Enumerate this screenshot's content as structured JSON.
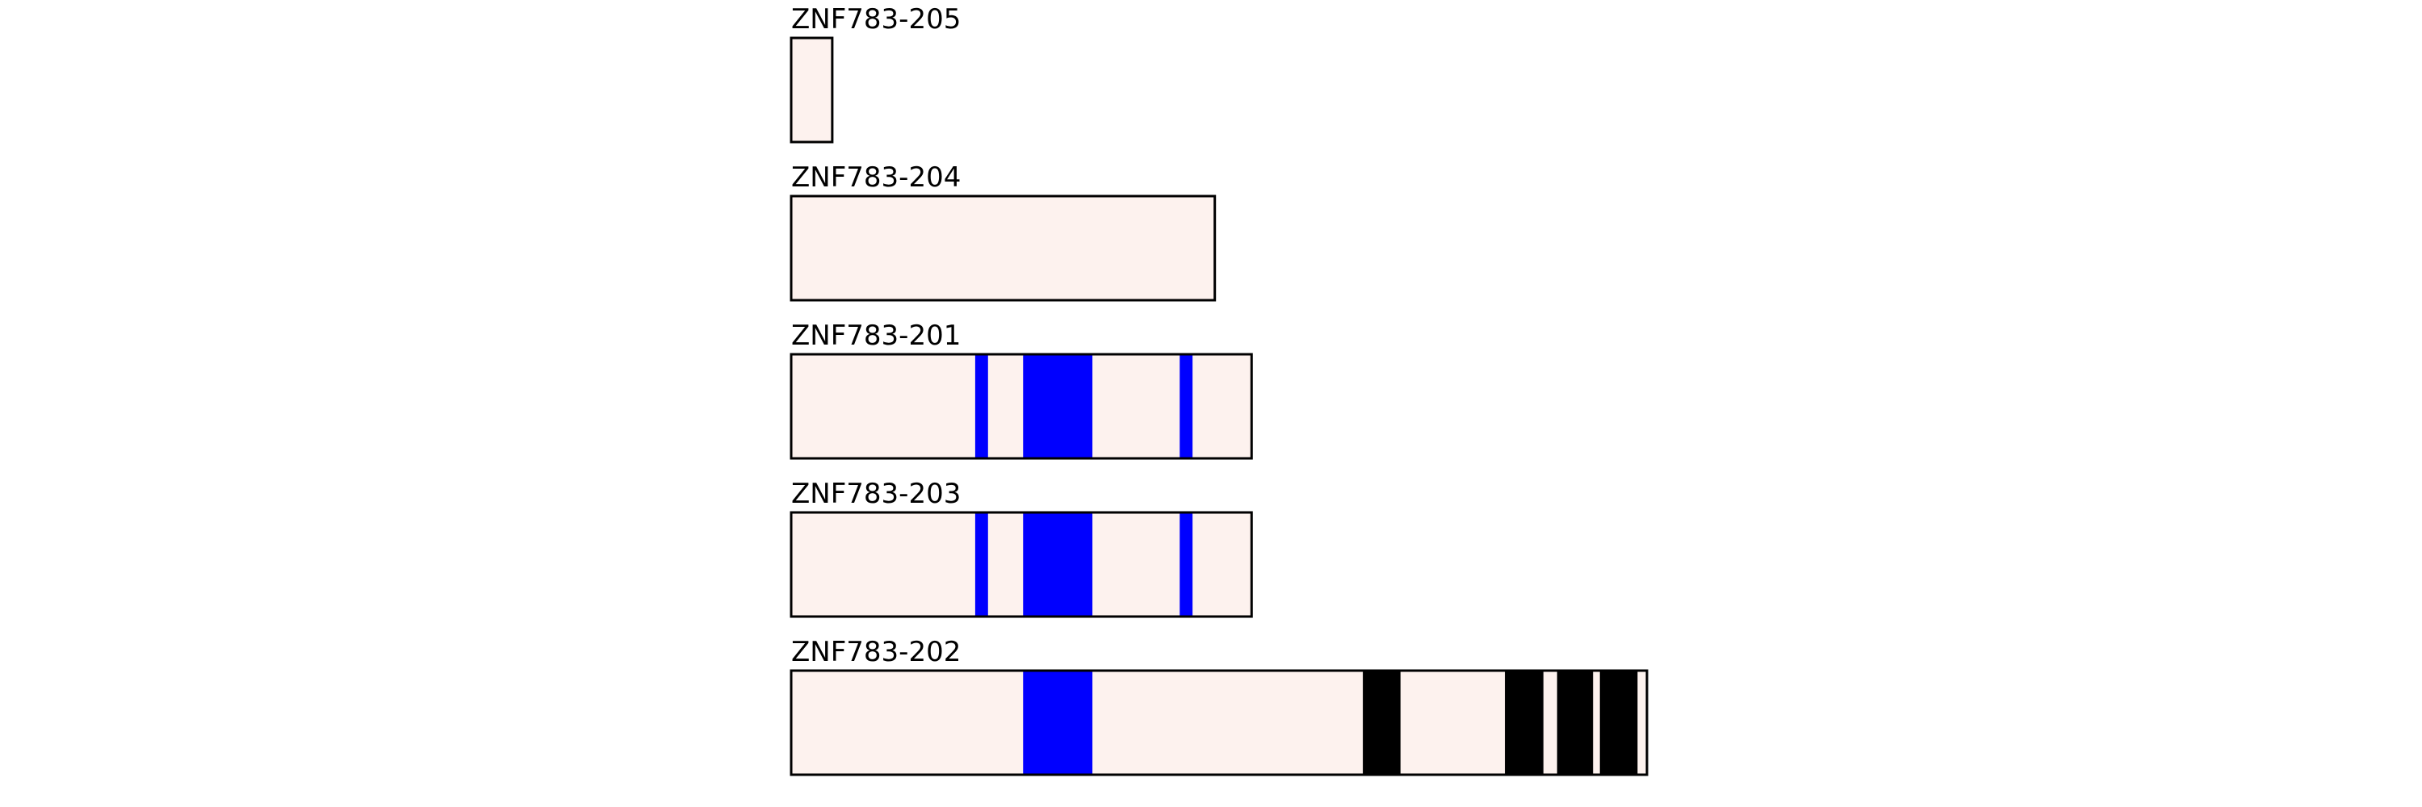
{
  "colors": {
    "background": "#ffffff",
    "transcript_fill": "#fdf2ee",
    "outline": "#000000",
    "blue_feature": "#0000ff",
    "black_feature": "#000000"
  },
  "transcripts": [
    {
      "name": "ZNF783-205",
      "span": [
        0,
        0.048
      ],
      "features": []
    },
    {
      "name": "ZNF783-204",
      "span": [
        0,
        0.495
      ],
      "features": []
    },
    {
      "name": "ZNF783-201",
      "span": [
        0,
        0.538
      ],
      "features": [
        {
          "range": [
            0.215,
            0.23
          ],
          "color": "#0000ff"
        },
        {
          "range": [
            0.271,
            0.352
          ],
          "color": "#0000ff"
        },
        {
          "range": [
            0.454,
            0.469
          ],
          "color": "#0000ff"
        }
      ]
    },
    {
      "name": "ZNF783-203",
      "span": [
        0,
        0.538
      ],
      "features": [
        {
          "range": [
            0.215,
            0.23
          ],
          "color": "#0000ff"
        },
        {
          "range": [
            0.271,
            0.352
          ],
          "color": "#0000ff"
        },
        {
          "range": [
            0.454,
            0.469
          ],
          "color": "#0000ff"
        }
      ]
    },
    {
      "name": "ZNF783-202",
      "span": [
        0,
        1.0
      ],
      "features": [
        {
          "range": [
            0.271,
            0.352
          ],
          "color": "#0000ff"
        },
        {
          "range": [
            0.668,
            0.712
          ],
          "color": "#000000"
        },
        {
          "range": [
            0.834,
            0.879
          ],
          "color": "#000000"
        },
        {
          "range": [
            0.895,
            0.937
          ],
          "color": "#000000"
        },
        {
          "range": [
            0.945,
            0.989
          ],
          "color": "#000000"
        }
      ]
    }
  ]
}
